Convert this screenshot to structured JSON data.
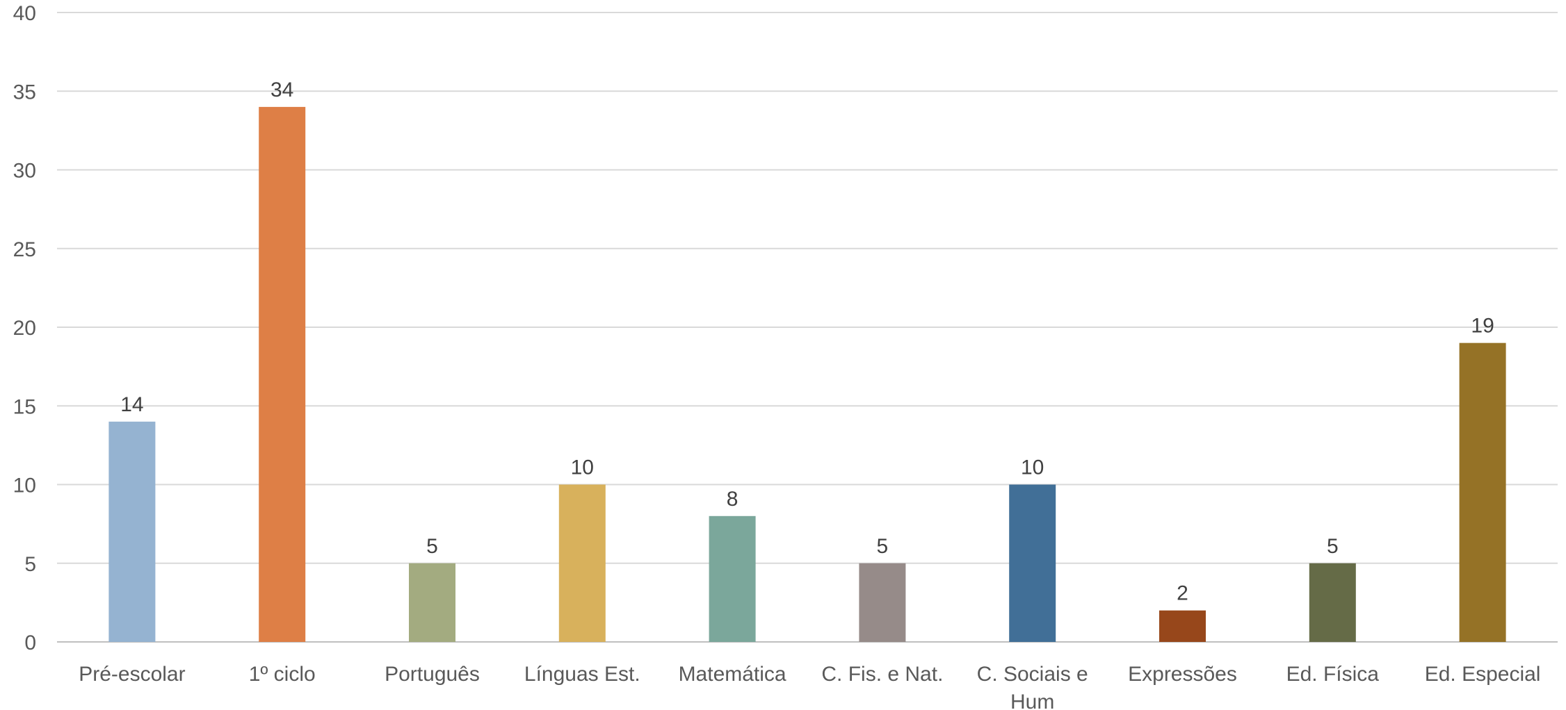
{
  "chart_data": {
    "type": "bar",
    "title": "",
    "xlabel": "",
    "ylabel": "",
    "ylim": [
      0,
      40
    ],
    "yticks": [
      0,
      5,
      10,
      15,
      20,
      25,
      30,
      35,
      40
    ],
    "grid": true,
    "legend": "none",
    "categories": [
      [
        "Pré-escolar"
      ],
      [
        "1º ciclo"
      ],
      [
        "Português"
      ],
      [
        "Línguas Est."
      ],
      [
        "Matemática"
      ],
      [
        "C. Fis. e Nat."
      ],
      [
        "C. Sociais e",
        "Hum"
      ],
      [
        "Expressões"
      ],
      [
        "Ed. Física"
      ],
      [
        "Ed. Especial"
      ]
    ],
    "values": [
      14,
      34,
      5,
      10,
      8,
      5,
      10,
      2,
      5,
      19
    ],
    "colors": [
      "#95b3d1",
      "#de7f46",
      "#a3ab80",
      "#d8b15c",
      "#7ba79b",
      "#968b89",
      "#416f97",
      "#97471b",
      "#656b47",
      "#957226"
    ]
  }
}
